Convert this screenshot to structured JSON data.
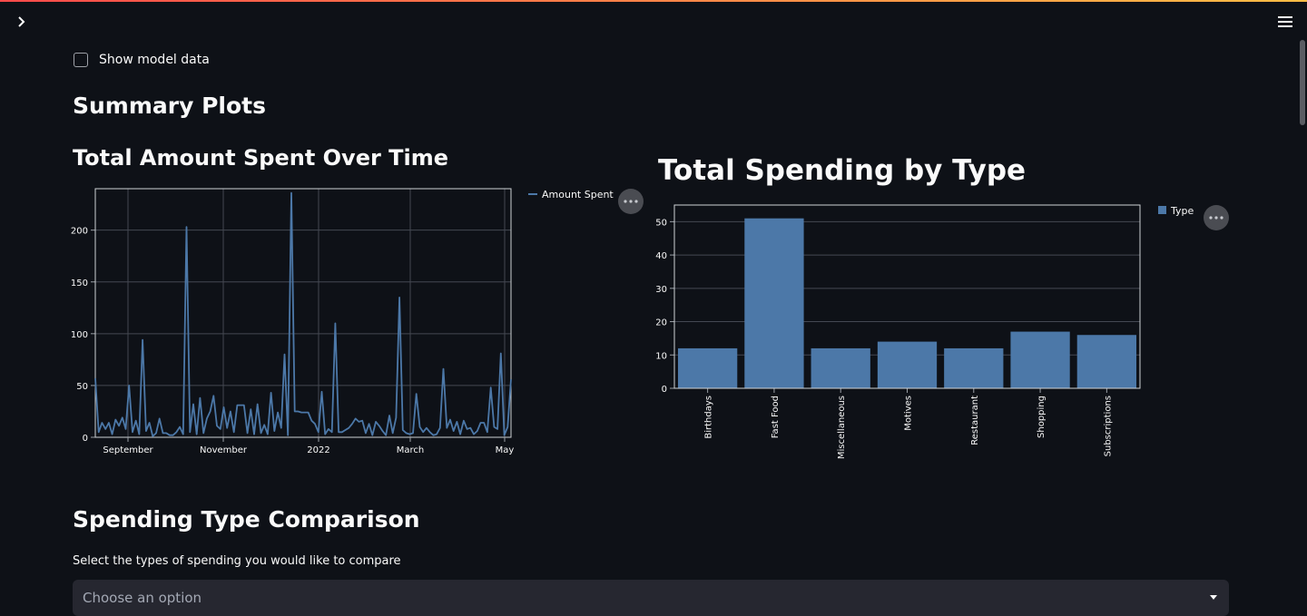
{
  "header": {
    "sidebar_toggle_icon": "chevron-right-icon",
    "menu_icon": "hamburger-menu-icon"
  },
  "checkbox": {
    "label": "Show model data",
    "checked": false
  },
  "headings": {
    "summary": "Summary Plots",
    "line_chart": "Total Amount Spent Over Time",
    "bar_chart": "Total Spending by Type",
    "comparison": "Spending Type Comparison"
  },
  "select": {
    "label": "Select the types of spending you would like to compare",
    "placeholder": "Choose an option"
  },
  "colors": {
    "background": "#0e1117",
    "series": "#4c78a8",
    "input_bg": "#262730"
  },
  "chart_data": [
    {
      "type": "line",
      "legend": [
        "Amount Spent"
      ],
      "x_tick_labels": [
        "September",
        "November",
        "2022",
        "March",
        "May"
      ],
      "y_ticks": [
        0,
        50,
        100,
        150,
        200
      ],
      "ylim": [
        0,
        240
      ],
      "grid": true,
      "legend_position": "right",
      "series": [
        {
          "name": "Amount Spent",
          "values": [
            57,
            5,
            14,
            8,
            14,
            3,
            17,
            11,
            19,
            8,
            50,
            5,
            16,
            3,
            94,
            6,
            14,
            1,
            4,
            18,
            4,
            4,
            2,
            2,
            5,
            10,
            3,
            203,
            5,
            32,
            3,
            38,
            4,
            18,
            25,
            40,
            11,
            8,
            29,
            9,
            25,
            5,
            31,
            31,
            31,
            4,
            27,
            3,
            32,
            4,
            12,
            3,
            43,
            6,
            24,
            9,
            80,
            2,
            236,
            25,
            25,
            24,
            24,
            24,
            16,
            13,
            5,
            44,
            3,
            8,
            5,
            110,
            5,
            5,
            7,
            9,
            13,
            18,
            15,
            16,
            4,
            13,
            2,
            15,
            11,
            6,
            2,
            21,
            4,
            19,
            135,
            7,
            4,
            3,
            4,
            42,
            10,
            5,
            9,
            5,
            2,
            3,
            9,
            66,
            9,
            17,
            6,
            15,
            3,
            16,
            8,
            9,
            3,
            6,
            14,
            14,
            5,
            48,
            10,
            8,
            81,
            2,
            10,
            56
          ]
        }
      ]
    },
    {
      "type": "bar",
      "legend": [
        "Type"
      ],
      "legend_position": "right",
      "categories": [
        "Birthdays",
        "Fast Food",
        "Miscellaneous",
        "Motives",
        "Restaurant",
        "Shopping",
        "Subscriptions"
      ],
      "values": [
        12,
        51,
        12,
        14,
        12,
        17,
        16
      ],
      "y_ticks": [
        0,
        10,
        20,
        30,
        40,
        50
      ],
      "ylim": [
        0,
        55
      ],
      "grid": true
    }
  ]
}
